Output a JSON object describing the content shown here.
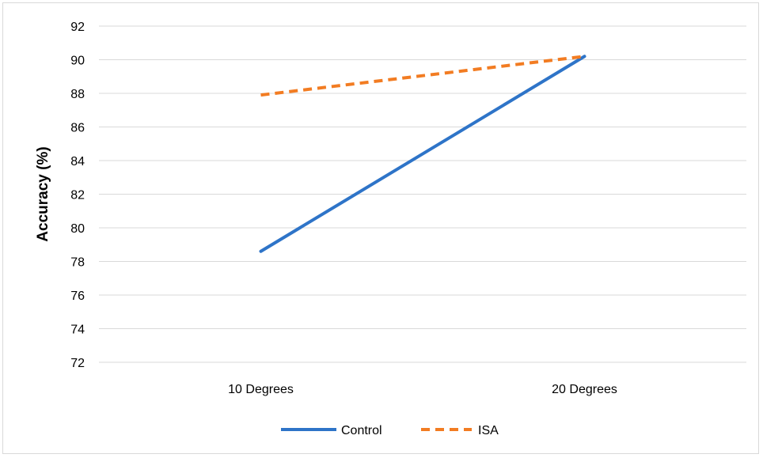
{
  "chart_data": {
    "type": "line",
    "title": "",
    "xlabel": "",
    "ylabel": "Accuracy (%)",
    "categories": [
      "10 Degrees",
      "20 Degrees"
    ],
    "ylim": [
      72,
      92
    ],
    "yticks": [
      72,
      74,
      76,
      78,
      80,
      82,
      84,
      86,
      88,
      90,
      92
    ],
    "grid": true,
    "legend_position": "bottom",
    "series": [
      {
        "name": "Control",
        "values": [
          78.6,
          90.2
        ],
        "color": "#2e74c8",
        "dash": "solid"
      },
      {
        "name": "ISA",
        "values": [
          87.9,
          90.2
        ],
        "color": "#f27c22",
        "dash": "dashed"
      }
    ]
  }
}
